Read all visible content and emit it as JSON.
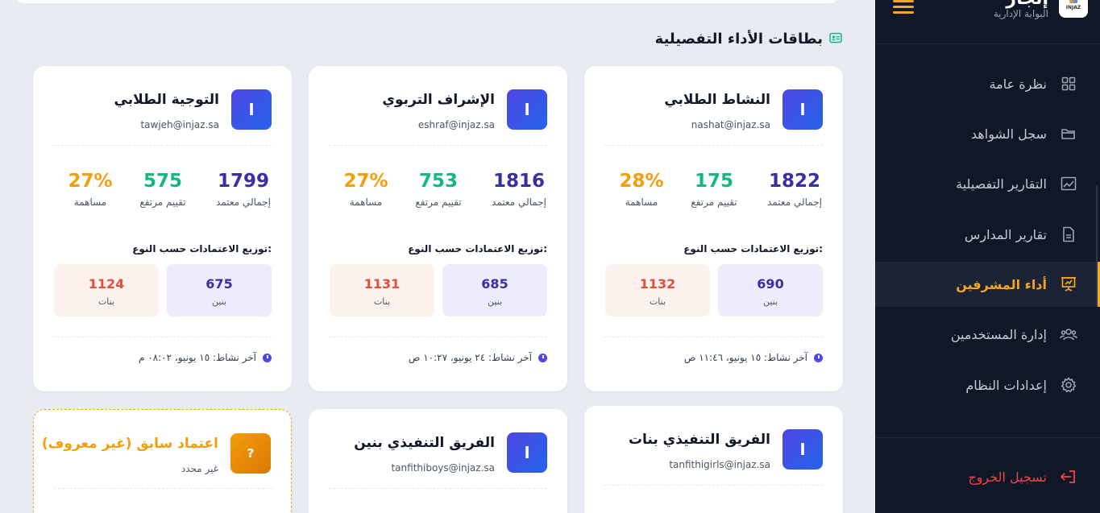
{
  "sidebar": {
    "brand_title": "إنجاز",
    "brand_subtitle": "البوابة الإدارية",
    "logo_text": "INJAZ",
    "items": [
      {
        "label": "نظرة عامة",
        "icon": "grid-icon"
      },
      {
        "label": "سجل الشواهد",
        "icon": "folder-icon"
      },
      {
        "label": "التقارير التفصيلية",
        "icon": "chart-line-icon"
      },
      {
        "label": "تقارير المدارس",
        "icon": "document-icon"
      },
      {
        "label": "أداء المشرفين",
        "icon": "presentation-icon"
      },
      {
        "label": "إدارة المستخدمين",
        "icon": "users-icon"
      },
      {
        "label": "إعدادات النظام",
        "icon": "gear-icon"
      }
    ],
    "logout_label": "تسجيل الخروج"
  },
  "section_title": "بطاقات الأداء التفصيلية",
  "labels": {
    "total": "إجمالي معتمد",
    "high": "تقييم مرتفع",
    "contribution": "مساهمة",
    "dist_title": "توزيع الاعتمادات حسب النوع:",
    "boys": "بنين",
    "girls": "بنات"
  },
  "cards": [
    {
      "initial": "ا",
      "name": "النشاط الطلابي",
      "email": "nashat@injaz.sa",
      "total": "1822",
      "high": "175",
      "contribution": "28%",
      "boys": "690",
      "girls": "1132",
      "activity": "آخر نشاط: ١٥ يونيو، ١١:٤٦ ص"
    },
    {
      "initial": "ا",
      "name": "الإشراف التربوي",
      "email": "eshraf@injaz.sa",
      "total": "1816",
      "high": "753",
      "contribution": "27%",
      "boys": "685",
      "girls": "1131",
      "activity": "آخر نشاط: ٢٤ يونيو، ١٠:٢٧ ص"
    },
    {
      "initial": "ا",
      "name": "التوجية الطلابي",
      "email": "tawjeh@injaz.sa",
      "total": "1799",
      "high": "575",
      "contribution": "27%",
      "boys": "675",
      "girls": "1124",
      "activity": "آخر نشاط: ١٥ يونيو، ٠٨:٠٢ م"
    },
    {
      "initial": "ا",
      "name": "الفريق التنفيذي بنات",
      "email": "tanfithigirls@injaz.sa"
    },
    {
      "initial": "ا",
      "name": "الفريق التنفيذي بنين",
      "email": "tanfithiboys@injaz.sa"
    },
    {
      "initial": "?",
      "name": "اعتماد سابق (غير معروف)",
      "email": "غير محدد"
    }
  ],
  "colors": {
    "accent": "#f5a524",
    "primary": "#4f46e5",
    "green": "#10b981",
    "orange": "#f59e0b"
  }
}
